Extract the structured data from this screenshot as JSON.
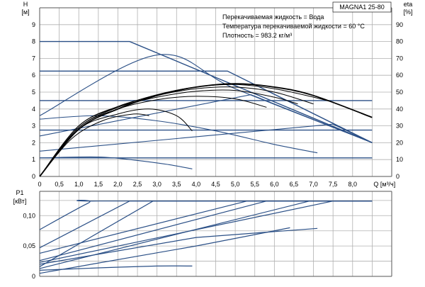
{
  "chart_data": [
    {
      "type": "line",
      "title": "MAGNA1 25-80",
      "conditions": [
        "Перекачиваемая жидкость = Вода",
        "Температура перекачиваемой жидкости = 60 °C",
        "Плотность = 983.2 кг/м³"
      ],
      "xlabel": "Q [м³/ч]",
      "ylabel": "H\n[м]",
      "ylabel_right": "eta\n[%]",
      "xlim": [
        0,
        9
      ],
      "ylim": [
        0,
        10
      ],
      "ylim_right": [
        0,
        100
      ],
      "x_ticks": [
        "0",
        "0,5",
        "1,0",
        "1,5",
        "2,0",
        "2,5",
        "3,0",
        "3,5",
        "4,0",
        "4,5",
        "5,0",
        "5,5",
        "6,0",
        "6,5",
        "7,0",
        "7,5",
        "8,0"
      ],
      "y_ticks": [
        "0",
        "1",
        "2",
        "3",
        "4",
        "5",
        "6",
        "7",
        "8",
        "9"
      ],
      "y_ticks_right": [
        "0",
        "10",
        "20",
        "30",
        "40",
        "50",
        "60",
        "70",
        "80",
        "90"
      ],
      "grid": true,
      "series": [
        {
          "group": "head",
          "values": [
            [
              0,
              8.0
            ],
            [
              2.3,
              8.0
            ],
            [
              8.5,
              2.0
            ]
          ]
        },
        {
          "group": "head",
          "values": [
            [
              0,
              6.25
            ],
            [
              4.8,
              6.25
            ],
            [
              8.5,
              2.0
            ]
          ]
        },
        {
          "group": "head",
          "values": [
            [
              0,
              4.5
            ],
            [
              8.5,
              4.5
            ]
          ]
        },
        {
          "group": "head",
          "values": [
            [
              0,
              2.75
            ],
            [
              8.5,
              2.75
            ]
          ]
        },
        {
          "group": "head",
          "values": [
            [
              0,
              1.1
            ],
            [
              8.5,
              1.1
            ]
          ]
        },
        {
          "group": "head",
          "values": [
            [
              0,
              3.6
            ],
            [
              3.0,
              7.2
            ],
            [
              5.0,
              5.2
            ],
            [
              8.5,
              2.0
            ]
          ]
        },
        {
          "group": "head",
          "values": [
            [
              0,
              2.4
            ],
            [
              5.4,
              4.85
            ],
            [
              8.5,
              2.0
            ]
          ]
        },
        {
          "group": "head",
          "values": [
            [
              0,
              1.5
            ],
            [
              7.5,
              3.1
            ],
            [
              8.5,
              2.0
            ]
          ]
        },
        {
          "group": "head",
          "values": [
            [
              0,
              3.4
            ],
            [
              1.5,
              3.6
            ],
            [
              3.0,
              3.3
            ],
            [
              4.5,
              2.7
            ],
            [
              6.0,
              1.9
            ],
            [
              7.1,
              1.4
            ]
          ]
        },
        {
          "group": "head",
          "values": [
            [
              0,
              1.1
            ],
            [
              1.5,
              1.15
            ],
            [
              2.5,
              0.95
            ],
            [
              3.3,
              0.7
            ],
            [
              3.9,
              0.45
            ]
          ]
        },
        {
          "group": "eta",
          "values": [
            [
              0,
              0
            ],
            [
              1.0,
              28
            ],
            [
              2.0,
              40
            ],
            [
              3.0,
              48
            ],
            [
              4.0,
              53
            ],
            [
              5.0,
              55
            ],
            [
              6.0,
              53
            ],
            [
              7.0,
              48
            ],
            [
              8.5,
              35
            ]
          ]
        },
        {
          "group": "eta",
          "values": [
            [
              0,
              0
            ],
            [
              1.0,
              29
            ],
            [
              2.0,
              41
            ],
            [
              3.0,
              48.5
            ],
            [
              4.0,
              53
            ],
            [
              5.0,
              54.5
            ],
            [
              6.0,
              52
            ],
            [
              7.0,
              47
            ],
            [
              7.5,
              44
            ]
          ]
        },
        {
          "group": "eta",
          "values": [
            [
              0,
              0
            ],
            [
              1.0,
              30
            ],
            [
              2.0,
              41.5
            ],
            [
              3.0,
              48
            ],
            [
              4.0,
              52
            ],
            [
              5.0,
              53
            ],
            [
              6.0,
              50
            ],
            [
              7.0,
              43
            ]
          ]
        },
        {
          "group": "eta",
          "values": [
            [
              0,
              0
            ],
            [
              1.0,
              30
            ],
            [
              2.0,
              41
            ],
            [
              3.0,
              47
            ],
            [
              4.0,
              50.5
            ],
            [
              5.0,
              51
            ],
            [
              6.0,
              47
            ],
            [
              6.6,
              43
            ]
          ]
        },
        {
          "group": "eta",
          "values": [
            [
              0,
              0
            ],
            [
              1.0,
              29
            ],
            [
              2.0,
              40
            ],
            [
              3.0,
              45.5
            ],
            [
              4.0,
              47.5
            ],
            [
              5.0,
              46
            ],
            [
              5.8,
              41
            ]
          ]
        },
        {
          "group": "eta",
          "values": [
            [
              0,
              0
            ],
            [
              1.0,
              28
            ],
            [
              2.0,
              37
            ],
            [
              2.8,
              40
            ],
            [
              3.5,
              36
            ],
            [
              3.9,
              27
            ]
          ]
        },
        {
          "group": "eta",
          "values": [
            [
              0,
              0
            ],
            [
              0.8,
              22
            ],
            [
              1.6,
              33
            ],
            [
              2.4,
              37
            ],
            [
              2.8,
              36
            ]
          ]
        }
      ]
    },
    {
      "type": "line",
      "ylabel": "P1\n[кВт]",
      "ylim": [
        0,
        0.14
      ],
      "y_ticks": [
        "0",
        "0,05",
        "0,10"
      ],
      "series": [
        {
          "values": [
            [
              0,
              0.077
            ],
            [
              1.25,
              0.121
            ],
            [
              1.5,
              0.124
            ],
            [
              8.5,
              0.124
            ]
          ]
        },
        {
          "values": [
            [
              0,
              0.047
            ],
            [
              2.3,
              0.124
            ],
            [
              8.5,
              0.124
            ]
          ]
        },
        {
          "values": [
            [
              0,
              0.016
            ],
            [
              2.9,
              0.124
            ],
            [
              8.5,
              0.124
            ]
          ]
        },
        {
          "values": [
            [
              0,
              0.038
            ],
            [
              5.3,
              0.124
            ],
            [
              8.5,
              0.124
            ]
          ]
        },
        {
          "values": [
            [
              0,
              0.026
            ],
            [
              5.8,
              0.124
            ],
            [
              8.5,
              0.124
            ]
          ]
        },
        {
          "values": [
            [
              0,
              0.013
            ],
            [
              6.9,
              0.124
            ],
            [
              8.5,
              0.124
            ]
          ]
        },
        {
          "values": [
            [
              0,
              0.023
            ],
            [
              7.5,
              0.124
            ],
            [
              8.5,
              0.124
            ]
          ]
        },
        {
          "values": [
            [
              0,
              0.02
            ],
            [
              4.0,
              0.064
            ],
            [
              7.1,
              0.079
            ]
          ]
        },
        {
          "values": [
            [
              0,
              0.005
            ],
            [
              4.0,
              0.05
            ],
            [
              6.4,
              0.08
            ]
          ]
        },
        {
          "values": [
            [
              0,
              0.01
            ],
            [
              1.5,
              0.014
            ],
            [
              3.0,
              0.017
            ],
            [
              3.9,
              0.017
            ]
          ]
        }
      ]
    }
  ]
}
